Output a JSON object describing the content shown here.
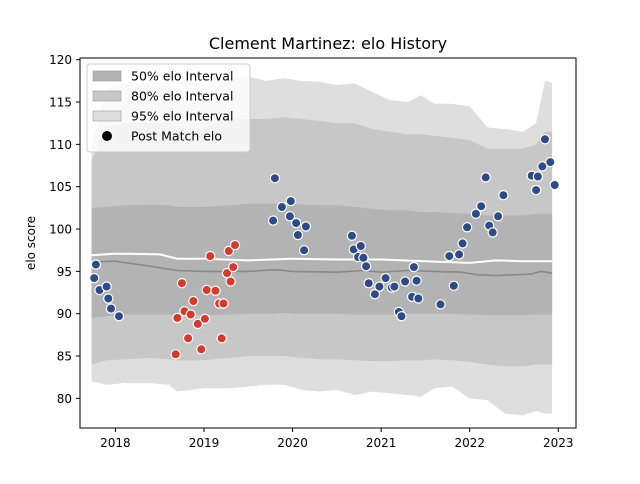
{
  "chart_data": {
    "type": "scatter",
    "title": "Clement Martinez: elo History",
    "xlabel": "",
    "ylabel": "elo score",
    "xlim": [
      2017.6,
      2023.2
    ],
    "ylim": [
      76.5,
      120.2
    ],
    "xticks": [
      2018,
      2019,
      2020,
      2021,
      2022,
      2023
    ],
    "xtick_labels": [
      "2018",
      "2019",
      "2020",
      "2021",
      "2022",
      "2023"
    ],
    "yticks": [
      80,
      85,
      90,
      95,
      100,
      105,
      110,
      115,
      120
    ],
    "ytick_labels": [
      "80",
      "85",
      "90",
      "95",
      "100",
      "105",
      "110",
      "115",
      "120"
    ],
    "grid": false,
    "legend_position": "top-left",
    "legend": [
      {
        "label": "50% elo Interval",
        "kind": "band",
        "color": "#b3b3b3"
      },
      {
        "label": "80% elo Interval",
        "kind": "band",
        "color": "#c7c7c7"
      },
      {
        "label": "95% elo Interval",
        "kind": "band",
        "color": "#dedede"
      },
      {
        "label": "Post Match elo",
        "kind": "marker",
        "color": "#000000"
      }
    ],
    "bands": {
      "x": [
        2017.73,
        2017.9,
        2018.1,
        2018.4,
        2018.6,
        2018.7,
        2019.0,
        2019.3,
        2019.5,
        2019.7,
        2019.9,
        2020.1,
        2020.3,
        2020.5,
        2020.7,
        2020.9,
        2021.1,
        2021.3,
        2021.45,
        2021.6,
        2021.8,
        2022.0,
        2022.2,
        2022.4,
        2022.6,
        2022.75,
        2022.85,
        2022.93
      ],
      "i95": {
        "upper": [
          110,
          116.5,
          117.2,
          117.0,
          117.0,
          115.5,
          115.5,
          117.8,
          118.0,
          117.5,
          117.8,
          117.5,
          117.4,
          117.0,
          117.2,
          116.2,
          115.2,
          115.0,
          115.8,
          114.8,
          114.8,
          114.5,
          112.0,
          111.8,
          111.5,
          112.5,
          117.5,
          117.3
        ],
        "lower": [
          82.0,
          81.6,
          81.8,
          81.8,
          81.6,
          80.8,
          81.2,
          81.2,
          81.4,
          81.6,
          81.6,
          81.0,
          80.8,
          81.0,
          80.4,
          80.8,
          80.6,
          80.4,
          80.2,
          81.2,
          81.4,
          80.0,
          79.8,
          78.2,
          78.0,
          78.5,
          78.2,
          78.2
        ]
      },
      "i80": {
        "upper": [
          108.0,
          112.0,
          112.5,
          112.5,
          112.5,
          112.0,
          112.0,
          113.0,
          113.0,
          113.0,
          113.2,
          113.0,
          112.8,
          112.5,
          112.5,
          111.8,
          111.5,
          111.2,
          111.2,
          111.0,
          110.8,
          110.5,
          109.5,
          109.5,
          109.5,
          110.0,
          111.5,
          111.5
        ],
        "lower": [
          84.0,
          84.5,
          84.6,
          84.8,
          84.6,
          84.5,
          84.5,
          84.8,
          85.0,
          85.0,
          85.0,
          84.8,
          84.6,
          84.6,
          84.5,
          84.4,
          84.4,
          84.5,
          84.5,
          84.6,
          84.5,
          84.3,
          84.0,
          83.8,
          83.8,
          84.0,
          84.0,
          84.0
        ]
      },
      "i50": {
        "upper": [
          102.5,
          102.6,
          102.8,
          102.9,
          102.8,
          102.6,
          102.6,
          102.8,
          103.0,
          103.0,
          103.0,
          102.9,
          102.8,
          102.8,
          102.6,
          102.4,
          102.2,
          102.2,
          102.0,
          102.0,
          101.9,
          101.8,
          101.6,
          101.6,
          101.6,
          101.8,
          101.8,
          101.8
        ],
        "lower": [
          89.5,
          89.7,
          89.9,
          89.9,
          89.9,
          89.8,
          89.8,
          89.9,
          90.0,
          90.0,
          90.1,
          90.0,
          90.0,
          90.0,
          89.9,
          89.9,
          89.9,
          90.0,
          90.0,
          90.0,
          90.0,
          89.9,
          89.8,
          89.8,
          89.8,
          89.9,
          89.9,
          89.9
        ]
      }
    },
    "lines": [
      {
        "color": "#ffffff",
        "x": [
          2017.73,
          2018.0,
          2018.5,
          2018.7,
          2019.0,
          2019.5,
          2020.0,
          2020.5,
          2021.0,
          2021.5,
          2022.0,
          2022.3,
          2022.6,
          2022.93
        ],
        "y": [
          96.9,
          97.1,
          97.0,
          96.5,
          96.5,
          96.3,
          96.5,
          96.4,
          96.4,
          96.2,
          96.0,
          96.3,
          96.2,
          96.2
        ]
      },
      {
        "color": "#888888",
        "x": [
          2017.73,
          2018.0,
          2018.4,
          2018.7,
          2019.0,
          2019.5,
          2019.8,
          2020.0,
          2020.5,
          2020.8,
          2021.0,
          2021.3,
          2021.6,
          2021.9,
          2022.1,
          2022.3,
          2022.5,
          2022.7,
          2022.8,
          2022.93
        ],
        "y": [
          96.1,
          96.2,
          95.6,
          95.1,
          95.0,
          95.0,
          95.2,
          95.0,
          94.9,
          95.1,
          94.9,
          95.1,
          95.0,
          94.9,
          94.6,
          94.5,
          94.6,
          94.7,
          95.0,
          94.8
        ]
      }
    ],
    "series": [
      {
        "color": "#2e4a87",
        "x": [
          2017.76,
          2017.78,
          2017.82,
          2017.9,
          2017.92,
          2017.95,
          2018.04,
          2019.78,
          2019.8,
          2019.88,
          2019.97,
          2019.98,
          2020.04,
          2020.06,
          2020.13,
          2020.15,
          2020.67,
          2020.69,
          2020.74,
          2020.77,
          2020.8,
          2020.83,
          2020.86,
          2020.93,
          2020.98,
          2021.05,
          2021.12,
          2021.15,
          2021.2,
          2021.23,
          2021.27,
          2021.35,
          2021.37,
          2021.4,
          2021.42,
          2021.67,
          2021.77,
          2021.82,
          2021.88,
          2021.92,
          2021.97,
          2022.07,
          2022.13,
          2022.18,
          2022.22,
          2022.26,
          2022.32,
          2022.38,
          2022.7,
          2022.75,
          2022.77,
          2022.82,
          2022.85,
          2022.91,
          2022.96
        ],
        "y": [
          94.2,
          95.8,
          92.8,
          93.2,
          91.8,
          90.6,
          89.7,
          101.0,
          106.0,
          102.6,
          101.5,
          103.3,
          100.7,
          99.3,
          97.5,
          100.3,
          99.2,
          97.6,
          96.7,
          98.0,
          96.6,
          95.6,
          93.6,
          92.3,
          93.2,
          94.2,
          93.1,
          93.2,
          90.2,
          89.7,
          93.8,
          92.0,
          95.5,
          93.9,
          91.8,
          91.1,
          96.8,
          93.3,
          97.0,
          98.3,
          100.2,
          101.8,
          102.7,
          106.1,
          100.4,
          99.6,
          101.5,
          104.0,
          106.3,
          104.6,
          106.2,
          107.4,
          110.6,
          107.9,
          105.2
        ]
      },
      {
        "color": "#d63a2f",
        "x": [
          2018.68,
          2018.7,
          2018.75,
          2018.78,
          2018.82,
          2018.85,
          2018.88,
          2018.93,
          2018.97,
          2019.01,
          2019.03,
          2019.07,
          2019.13,
          2019.17,
          2019.2,
          2019.22,
          2019.26,
          2019.28,
          2019.3,
          2019.33,
          2019.35
        ],
        "y": [
          85.2,
          89.5,
          93.6,
          90.3,
          87.1,
          89.9,
          91.5,
          88.8,
          85.8,
          89.4,
          92.8,
          96.8,
          92.7,
          91.2,
          87.1,
          91.2,
          94.8,
          97.4,
          93.8,
          95.5,
          98.1
        ]
      }
    ]
  }
}
